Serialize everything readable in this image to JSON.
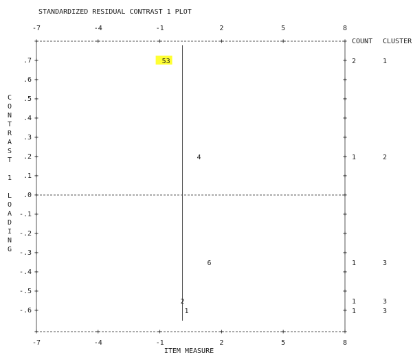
{
  "chart_data": {
    "type": "scatter",
    "title": "STANDARDIZED RESIDUAL CONTRAST 1 PLOT",
    "xlabel": "ITEM MEASURE",
    "ylabel": "CONTRAST 1 LOADING",
    "x_ticks": [
      -7,
      -4,
      -1,
      2,
      5,
      8
    ],
    "y_ticks": [
      ".7",
      ".6",
      ".5",
      ".4",
      ".3",
      ".2",
      ".1",
      ".0",
      "-.1",
      "-.2",
      "-.3",
      "-.4",
      "-.5",
      "-.6"
    ],
    "xlim": [
      -7,
      8
    ],
    "ylim": [
      -0.6,
      0.7
    ],
    "points": [
      {
        "label": "53",
        "x": -0.9,
        "y": 0.7,
        "highlight": true
      },
      {
        "label": "4",
        "x": 0.8,
        "y": 0.2
      },
      {
        "label": "6",
        "x": 1.3,
        "y": -0.35
      },
      {
        "label": "2",
        "x": 0.0,
        "y": -0.55
      },
      {
        "label": "1",
        "x": 0.2,
        "y": -0.6
      }
    ],
    "right_headers": {
      "count": "COUNT",
      "cluster": "CLUSTER"
    },
    "right_rows": [
      {
        "y": 0.7,
        "count": "2",
        "cluster": "1"
      },
      {
        "y": 0.2,
        "count": "1",
        "cluster": "2"
      },
      {
        "y": -0.35,
        "count": "1",
        "cluster": "3"
      },
      {
        "y": -0.55,
        "count": "1",
        "cluster": "3"
      },
      {
        "y": -0.6,
        "count": "1",
        "cluster": "3"
      }
    ],
    "vertical_line_x": 0.1,
    "highlight_color": "#ffff33"
  }
}
